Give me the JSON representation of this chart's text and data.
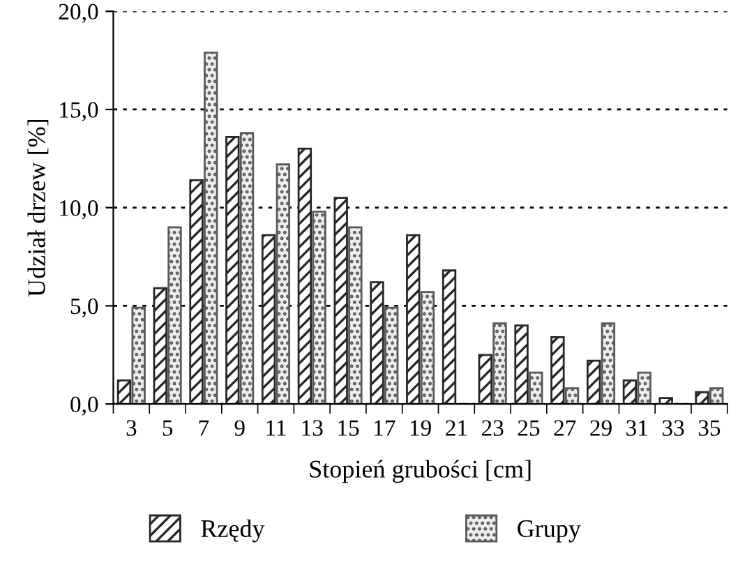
{
  "chart_data": {
    "type": "bar",
    "xlabel": "Stopień grubości [cm]",
    "ylabel": "Udział drzew [%]",
    "categories": [
      "3",
      "5",
      "7",
      "9",
      "11",
      "13",
      "15",
      "17",
      "19",
      "21",
      "23",
      "25",
      "27",
      "29",
      "31",
      "33",
      "35"
    ],
    "series": [
      {
        "name": "Rzędy",
        "color": "#262626",
        "values": [
          1.2,
          5.9,
          11.4,
          13.6,
          8.6,
          13.0,
          10.5,
          6.2,
          8.6,
          6.8,
          2.5,
          4.0,
          3.4,
          2.2,
          1.2,
          0.3,
          0.6
        ]
      },
      {
        "name": "Grupy",
        "color": "#595959",
        "values": [
          4.9,
          9.0,
          17.9,
          13.8,
          12.2,
          9.8,
          9.0,
          4.9,
          5.7,
          0,
          4.1,
          1.6,
          0.8,
          4.1,
          1.6,
          0,
          0.8
        ]
      }
    ],
    "ylim": [
      0,
      20
    ],
    "yticks": [
      {
        "value": 0,
        "label": "0,0"
      },
      {
        "value": 5,
        "label": "5,0"
      },
      {
        "value": 10,
        "label": "10,0"
      },
      {
        "value": 15,
        "label": "15,0"
      },
      {
        "value": 20,
        "label": "20,0"
      }
    ],
    "grid": "y",
    "legend": "bottom"
  }
}
